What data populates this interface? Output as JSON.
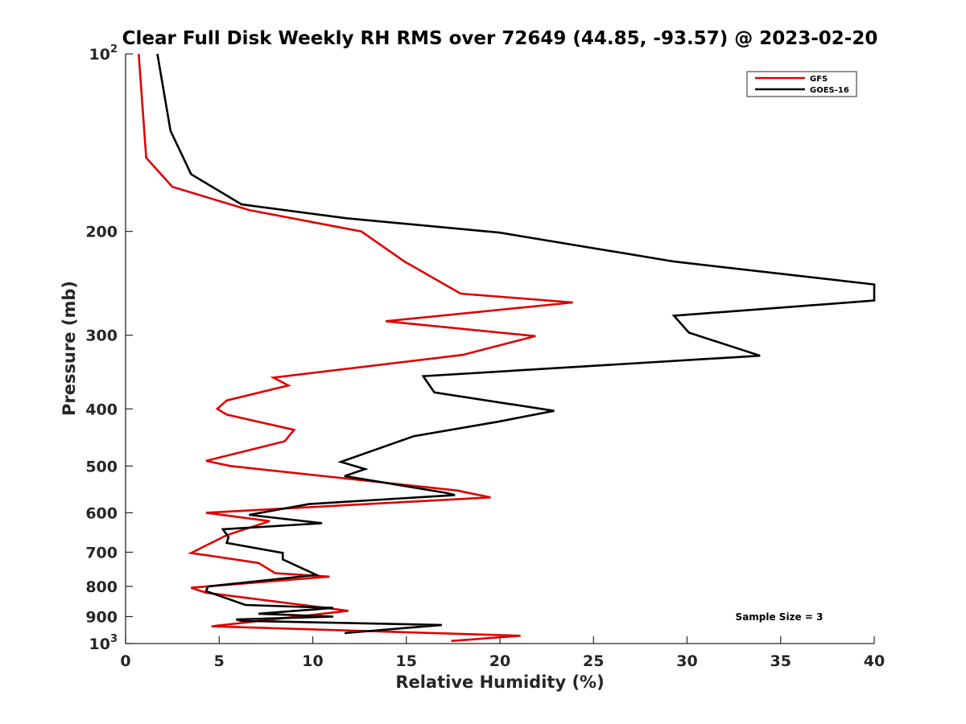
{
  "chart_data": {
    "type": "line",
    "title": "Clear Full Disk Weekly RH RMS over 72649 (44.85, -93.57) @ 2023-02-20",
    "xlabel": "Relative Humidity (%)",
    "ylabel": "Pressure (mb)",
    "xlim": [
      0,
      40
    ],
    "ylim": [
      100,
      1000
    ],
    "y_scale": "log",
    "y_reversed": true,
    "x_ticks": [
      "0",
      "5",
      "10",
      "15",
      "20",
      "25",
      "30",
      "35",
      "40"
    ],
    "y_ticks": [
      {
        "value": 100,
        "base": "10",
        "exp": "2"
      },
      {
        "value": 200,
        "label": "200"
      },
      {
        "value": 300,
        "label": "300"
      },
      {
        "value": 400,
        "label": "400"
      },
      {
        "value": 500,
        "label": "500"
      },
      {
        "value": 600,
        "label": "600"
      },
      {
        "value": 700,
        "label": "700"
      },
      {
        "value": 800,
        "label": "800"
      },
      {
        "value": 900,
        "label": "900"
      },
      {
        "value": 1000,
        "base": "10",
        "exp": "3"
      }
    ],
    "grid": false,
    "legend_position": "top-right",
    "annotation": "Sample Size = 3",
    "series": [
      {
        "name": "GFS",
        "color": "#e00000",
        "x": [
          0.7,
          1.1,
          2.5,
          6.6,
          12.6,
          14.9,
          17.9,
          23.9,
          13.9,
          21.9,
          18.0,
          7.9,
          8.7,
          5.4,
          4.9,
          5.4,
          9.0,
          8.5,
          4.3,
          5.6,
          17.7,
          19.5,
          4.3,
          7.7,
          5.4,
          3.5,
          7.1,
          8.0,
          10.9,
          3.5,
          4.3,
          11.9,
          4.6,
          21.1,
          17.4
        ],
        "y": [
          100,
          150,
          168,
          184,
          200,
          225,
          255,
          264,
          284,
          301,
          324,
          354,
          365,
          387,
          400,
          409,
          434,
          454,
          490,
          500,
          550,
          565,
          600,
          620,
          655,
          702,
          730,
          760,
          770,
          804,
          820,
          880,
          935,
          970,
          990
        ]
      },
      {
        "name": "GOES-16",
        "color": "#000000",
        "x": [
          1.7,
          2.4,
          3.5,
          6.2,
          11.8,
          20.0,
          29.3,
          40.0,
          40.0,
          29.3,
          30.1,
          33.9,
          15.9,
          16.5,
          22.9,
          20.0,
          15.4,
          11.5,
          12.8,
          11.7,
          17.1,
          17.6,
          9.8,
          6.6,
          10.5,
          5.2,
          5.5,
          5.4,
          8.4,
          8.4,
          10.2,
          4.4,
          4.3,
          6.4,
          11.1,
          7.1,
          11.1,
          5.9,
          6.2,
          16.9,
          11.7
        ],
        "y": [
          100,
          135,
          160,
          180,
          190,
          201,
          225,
          246,
          262,
          278,
          297,
          325,
          352,
          375,
          403,
          420,
          445,
          492,
          506,
          520,
          555,
          560,
          580,
          605,
          625,
          640,
          660,
          675,
          702,
          720,
          765,
          800,
          815,
          860,
          870,
          890,
          900,
          910,
          915,
          930,
          960
        ]
      }
    ]
  }
}
